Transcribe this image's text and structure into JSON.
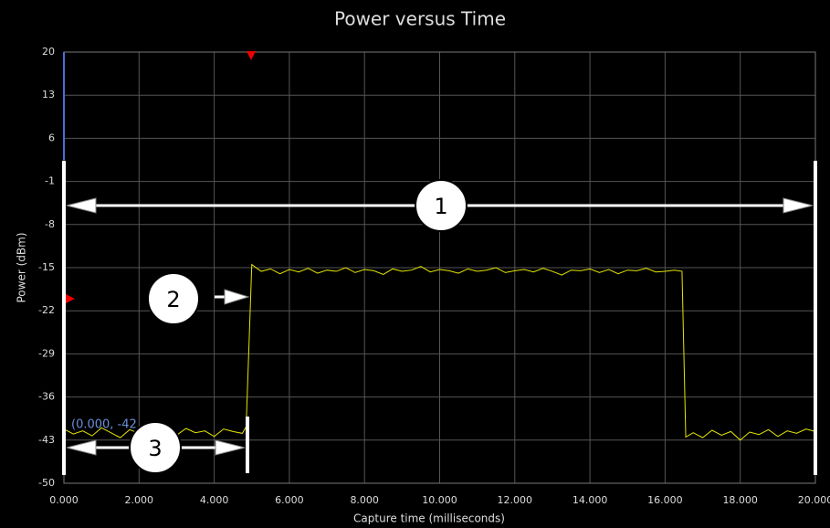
{
  "chart_data": {
    "type": "line",
    "title": "Power versus Time",
    "x_label": "Capture time (milliseconds)",
    "y_label": "Power (dBm)",
    "xlim": [
      0,
      20
    ],
    "xticks": [
      {
        "value": 0,
        "label": "0.000"
      },
      {
        "value": 2,
        "label": "2.000"
      },
      {
        "value": 4,
        "label": "4.000"
      },
      {
        "value": 6,
        "label": "6.000"
      },
      {
        "value": 8,
        "label": "8.000"
      },
      {
        "value": 10,
        "label": "10.000"
      },
      {
        "value": 12,
        "label": "12.000"
      },
      {
        "value": 14,
        "label": "14.000"
      },
      {
        "value": 16,
        "label": "16.000"
      },
      {
        "value": 18,
        "label": "18.000"
      },
      {
        "value": 20,
        "label": "20.000"
      }
    ],
    "ylim": [
      -50,
      20
    ],
    "yticks": [
      20,
      13,
      6,
      -1,
      -8,
      -15,
      -22,
      -29,
      -36,
      -43,
      -50
    ],
    "grid": true,
    "series": [
      {
        "color": "#e5e500",
        "x": [
          0,
          0.25,
          0.5,
          0.75,
          1,
          1.25,
          1.5,
          1.75,
          2,
          2.25,
          2.5,
          2.75,
          3,
          3.25,
          3.5,
          3.75,
          4,
          4.25,
          4.5,
          4.75,
          4.85,
          5,
          5.25,
          5.5,
          5.75,
          6,
          6.25,
          6.5,
          6.75,
          7,
          7.25,
          7.5,
          7.75,
          8,
          8.25,
          8.5,
          8.75,
          9,
          9.25,
          9.5,
          9.75,
          10,
          10.25,
          10.5,
          10.75,
          11,
          11.25,
          11.5,
          11.75,
          12,
          12.25,
          12.5,
          12.75,
          13,
          13.25,
          13.5,
          13.75,
          14,
          14.25,
          14.5,
          14.75,
          15,
          15.25,
          15.5,
          15.75,
          16,
          16.25,
          16.45,
          16.55,
          16.75,
          17,
          17.25,
          17.5,
          17.75,
          18,
          18.25,
          18.5,
          18.75,
          19,
          19.25,
          19.5,
          19.75,
          20
        ],
        "values": [
          -41.2,
          -42.0,
          -41.5,
          -42.3,
          -41.0,
          -41.8,
          -42.6,
          -41.3,
          -41.9,
          -43.0,
          -41.4,
          -41.7,
          -42.2,
          -41.1,
          -41.8,
          -41.5,
          -42.4,
          -41.2,
          -41.6,
          -41.9,
          -40.8,
          -14.5,
          -15.6,
          -15.2,
          -16.0,
          -15.3,
          -15.7,
          -15.1,
          -15.9,
          -15.4,
          -15.6,
          -15.0,
          -15.8,
          -15.3,
          -15.5,
          -16.1,
          -15.2,
          -15.6,
          -15.4,
          -14.8,
          -15.7,
          -15.3,
          -15.5,
          -15.9,
          -15.2,
          -15.6,
          -15.4,
          -15.0,
          -15.8,
          -15.5,
          -15.3,
          -15.7,
          -15.1,
          -15.6,
          -16.2,
          -15.4,
          -15.5,
          -15.2,
          -15.8,
          -15.3,
          -16.0,
          -15.4,
          -15.5,
          -15.1,
          -15.7,
          -15.6,
          -15.4,
          -15.6,
          -42.5,
          -41.8,
          -42.6,
          -41.4,
          -42.2,
          -41.6,
          -43.0,
          -41.7,
          -42.1,
          -41.3,
          -42.4,
          -41.5,
          -41.9,
          -41.2,
          -41.6
        ],
        "axis": "y"
      }
    ],
    "annotations": {
      "cursor": "(0.000, -42",
      "callouts": [
        "1",
        "2",
        "3"
      ]
    }
  }
}
